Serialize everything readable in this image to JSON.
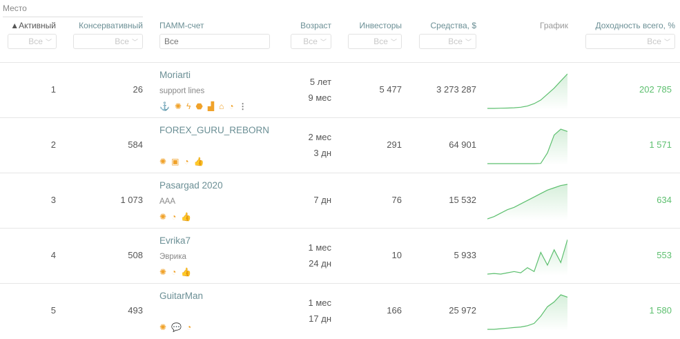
{
  "header": {
    "group_label": "Место",
    "columns": [
      "▲Активный",
      "Консервативный",
      "ПАММ-счет",
      "Возраст",
      "Инвесторы",
      "Средства, $",
      "График",
      "Доходность всего, %"
    ],
    "filter_placeholder": "Все",
    "chevron": "chevron-down-icon"
  },
  "colors": {
    "accent": "#6b8f95",
    "yield": "#5cbf6e",
    "icon": "#f0a22a",
    "spark": "#5cbf6e"
  },
  "rows": [
    {
      "active": "1",
      "conservative": "26",
      "name": "Moriarti",
      "sub": "support lines",
      "age1": "5 лет",
      "age2": "9 мес",
      "investors": "5 477",
      "funds": "3 273 287",
      "yield": "202 785",
      "icons": [
        "⚓",
        "✺",
        "ϟ",
        "⬣",
        "▟",
        "⌂",
        "◔"
      ],
      "more": true,
      "spark": [
        1,
        1,
        1.2,
        1.3,
        1.5,
        2,
        3,
        5,
        8,
        13,
        18,
        24,
        30
      ]
    },
    {
      "active": "2",
      "conservative": "584",
      "name": "FOREX_GURU_REBORN",
      "sub": "",
      "age1": "2 мес",
      "age2": "3 дн",
      "investors": "291",
      "funds": "64 901",
      "yield": "1 571",
      "icons": [
        "✺",
        "▣",
        "◔",
        "👍"
      ],
      "more": false,
      "spark": [
        1,
        1,
        1,
        1,
        1,
        1,
        1,
        1,
        1.2,
        10,
        25,
        30,
        28
      ]
    },
    {
      "active": "3",
      "conservative": "1 073",
      "name": "Pasargad 2020",
      "sub": "AAA",
      "age1": "7 дн",
      "age2": "",
      "investors": "76",
      "funds": "15 532",
      "yield": "634",
      "icons": [
        "✺",
        "◔",
        "👍"
      ],
      "more": false,
      "spark": [
        1,
        3,
        6,
        9,
        11,
        14,
        17,
        20,
        23,
        26,
        28,
        30,
        31
      ]
    },
    {
      "active": "4",
      "conservative": "508",
      "name": "Evrika7",
      "sub": "Эврика",
      "age1": "1 мес",
      "age2": "24 дн",
      "investors": "10",
      "funds": "5 933",
      "yield": "553",
      "icons": [
        "✺",
        "◔",
        "👍"
      ],
      "more": false,
      "spark": [
        1,
        1.5,
        1,
        2,
        3,
        2,
        6,
        3,
        18,
        8,
        20,
        10,
        28
      ]
    },
    {
      "active": "5",
      "conservative": "493",
      "name": "GuitarMan",
      "sub": "",
      "age1": "1 мес",
      "age2": "17 дн",
      "investors": "166",
      "funds": "25 972",
      "yield": "1 580",
      "icons": [
        "✺",
        "💬",
        "◔"
      ],
      "more": false,
      "spark": [
        1,
        1,
        1.5,
        2,
        2.5,
        3,
        4,
        6,
        12,
        20,
        24,
        30,
        28
      ]
    }
  ]
}
